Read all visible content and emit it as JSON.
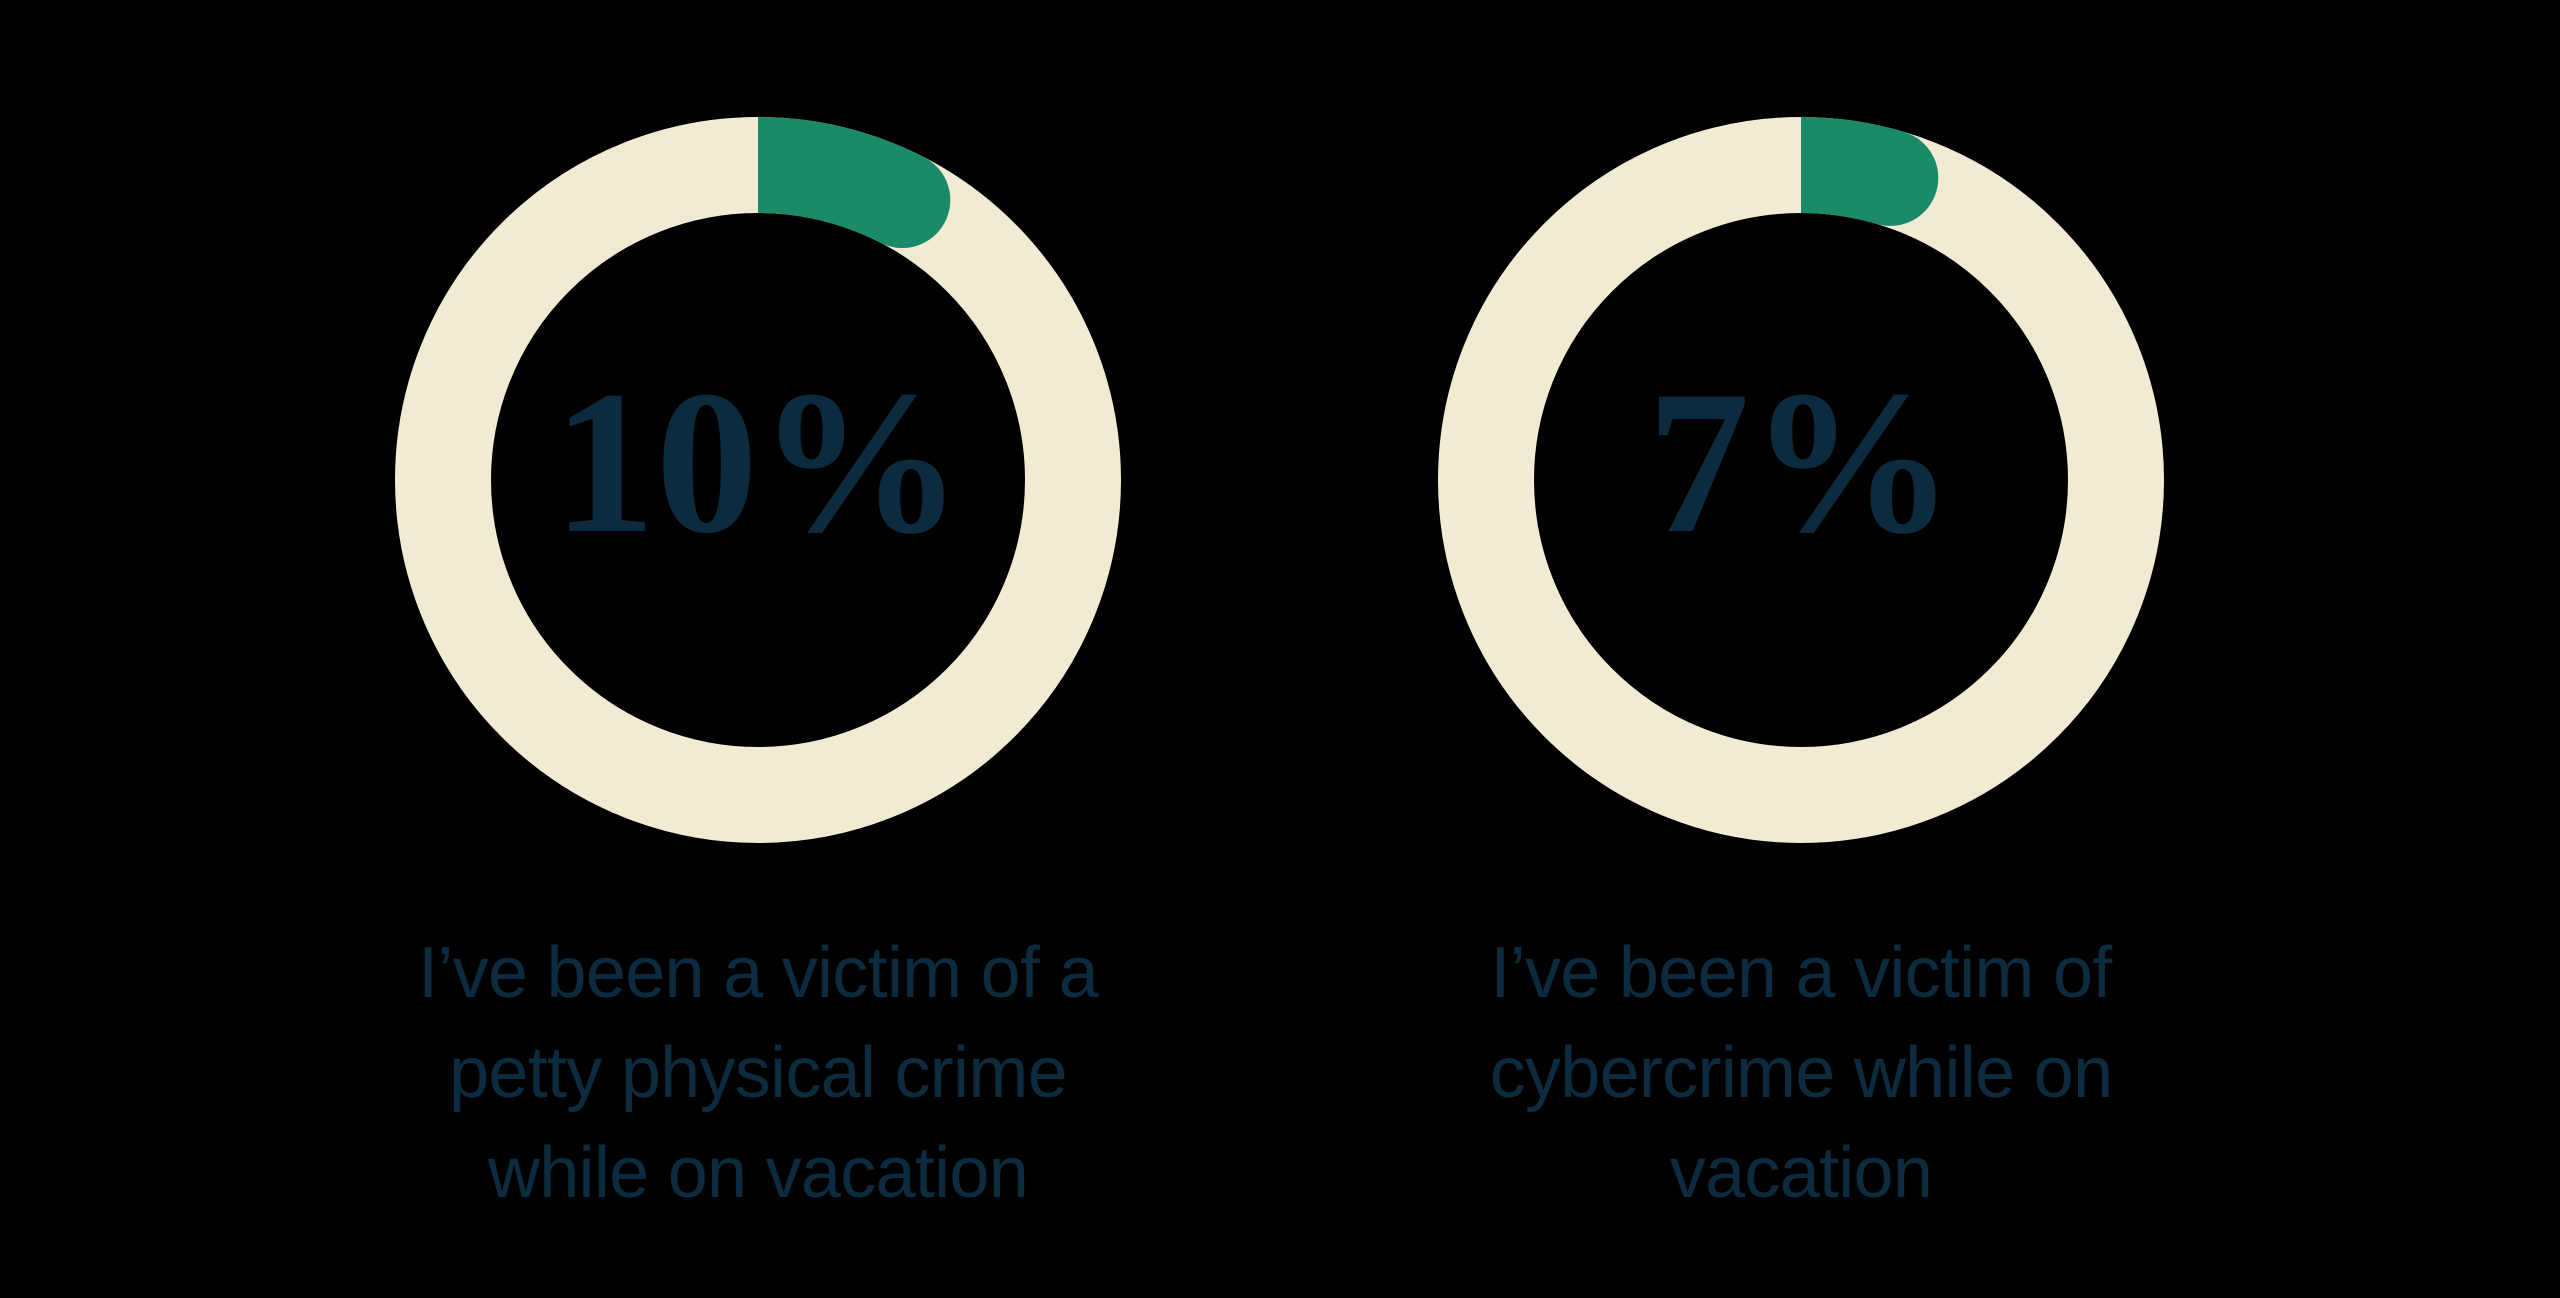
{
  "page": {
    "background": "#000000"
  },
  "colors": {
    "ring_track": "#f0ebd2",
    "accent_green": "#1a8a69",
    "text_navy": "#0d2b3e"
  },
  "chart_data": [
    {
      "type": "pie",
      "variant": "donut-progress",
      "label": "10%",
      "value": 10,
      "max": 100,
      "start_angle_deg": 0,
      "direction": "clockwise",
      "legend_position": "none",
      "caption": "I’ve been a victim of a petty physical crime while on vacation",
      "caption_lines": [
        "I’ve been a victim of a",
        "petty physical crime",
        "while on vacation"
      ],
      "slices": [
        {
          "name": "victims",
          "value": 10,
          "color": "#1a8a69"
        },
        {
          "name": "remainder",
          "value": 90,
          "color": "#f0ebd2"
        }
      ]
    },
    {
      "type": "pie",
      "variant": "donut-progress",
      "label": "7%",
      "value": 7,
      "max": 100,
      "start_angle_deg": 0,
      "direction": "clockwise",
      "legend_position": "none",
      "caption": "I’ve been a victim of cybercrime while on vacation",
      "caption_lines": [
        "I’ve been a victim of",
        "cybercrime while on",
        "vacation"
      ],
      "slices": [
        {
          "name": "victims",
          "value": 7,
          "color": "#1a8a69"
        },
        {
          "name": "remainder",
          "value": 93,
          "color": "#f0ebd2"
        }
      ]
    }
  ]
}
